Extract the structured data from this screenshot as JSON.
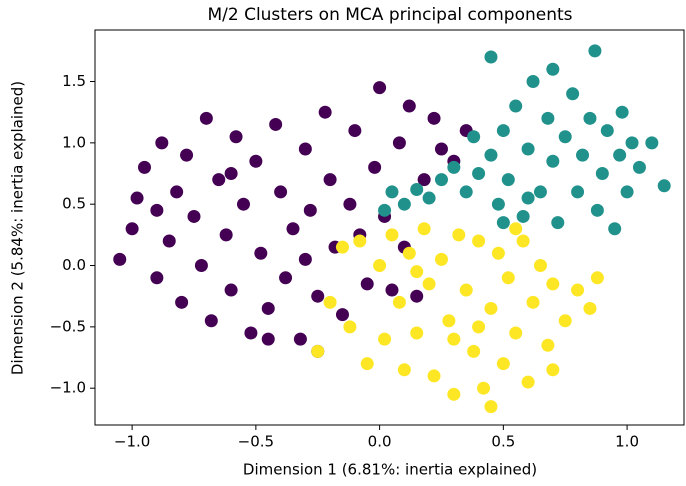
{
  "chart_data": {
    "type": "scatter",
    "title": "M/2 Clusters on MCA principal components",
    "x_label": "Dimension 1 (6.81%: inertia explained)",
    "y_label": "Dimension 2 (5.84%: inertia explained)",
    "xlim": [
      -1.15,
      1.23
    ],
    "ylim": [
      -1.3,
      1.92
    ],
    "xticks": [
      {
        "value": -1.0,
        "label": "−1.0"
      },
      {
        "value": -0.5,
        "label": "−0.5"
      },
      {
        "value": 0.0,
        "label": "0.0"
      },
      {
        "value": 0.5,
        "label": "0.5"
      },
      {
        "value": 1.0,
        "label": "1.0"
      }
    ],
    "yticks": [
      {
        "value": -1.0,
        "label": "−1.0"
      },
      {
        "value": -0.5,
        "label": "−0.5"
      },
      {
        "value": 0.0,
        "label": "0.0"
      },
      {
        "value": 0.5,
        "label": "0.5"
      },
      {
        "value": 1.0,
        "label": "1.0"
      },
      {
        "value": 1.5,
        "label": "1.5"
      }
    ],
    "series": [
      {
        "color": "#440154",
        "x": [
          -1.05,
          -1.0,
          -0.98,
          -0.95,
          -0.9,
          -0.88,
          -0.85,
          -0.82,
          -0.8,
          -0.78,
          -0.75,
          -0.72,
          -0.7,
          -0.68,
          -0.65,
          -0.62,
          -0.6,
          -0.58,
          -0.55,
          -0.52,
          -0.5,
          -0.48,
          -0.45,
          -0.42,
          -0.4,
          -0.38,
          -0.35,
          -0.32,
          -0.3,
          -0.28,
          -0.25,
          -0.22,
          -0.2,
          -0.18,
          -0.15,
          -0.12,
          -0.1,
          -0.08,
          -0.05,
          -0.02,
          0.0,
          0.02,
          0.05,
          0.08,
          0.1,
          0.12,
          0.15,
          0.18,
          0.22,
          0.25,
          0.3,
          0.35,
          -0.9,
          -0.6,
          -0.3,
          -0.45,
          -0.25
        ],
        "y": [
          0.05,
          0.3,
          0.55,
          0.8,
          -0.1,
          1.0,
          0.2,
          0.6,
          -0.3,
          0.9,
          0.4,
          0.0,
          1.2,
          -0.45,
          0.7,
          0.25,
          -0.2,
          1.05,
          0.5,
          -0.55,
          0.85,
          0.1,
          -0.35,
          1.15,
          0.6,
          -0.1,
          0.3,
          -0.6,
          0.95,
          0.45,
          -0.25,
          1.25,
          0.7,
          0.15,
          -0.4,
          0.5,
          1.1,
          0.25,
          -0.15,
          0.8,
          1.45,
          0.4,
          -0.2,
          1.0,
          0.15,
          1.3,
          -0.25,
          0.7,
          1.2,
          0.95,
          0.85,
          1.1,
          0.45,
          0.75,
          0.05,
          -0.6,
          -0.7
        ]
      },
      {
        "color": "#21918c",
        "x": [
          0.02,
          0.05,
          0.1,
          0.15,
          0.2,
          0.25,
          0.3,
          0.35,
          0.4,
          0.45,
          0.48,
          0.5,
          0.52,
          0.55,
          0.58,
          0.6,
          0.62,
          0.65,
          0.68,
          0.7,
          0.72,
          0.75,
          0.78,
          0.8,
          0.82,
          0.85,
          0.87,
          0.88,
          0.9,
          0.92,
          0.95,
          0.97,
          1.0,
          1.02,
          1.05,
          1.1,
          1.15,
          0.45,
          0.5,
          0.38,
          0.7,
          0.6,
          0.98
        ],
        "y": [
          0.45,
          0.6,
          0.5,
          0.62,
          0.55,
          0.7,
          0.8,
          0.6,
          0.75,
          0.9,
          0.5,
          1.1,
          0.7,
          1.3,
          0.4,
          0.95,
          1.5,
          0.6,
          1.2,
          0.85,
          0.35,
          1.05,
          1.4,
          0.6,
          0.9,
          1.2,
          1.75,
          0.45,
          0.75,
          1.1,
          0.3,
          0.9,
          0.6,
          1.0,
          0.8,
          1.0,
          0.65,
          1.7,
          0.35,
          1.05,
          1.6,
          0.55,
          1.25
        ]
      },
      {
        "color": "#fde725",
        "x": [
          -0.25,
          -0.2,
          -0.15,
          -0.12,
          -0.08,
          -0.05,
          0.0,
          0.02,
          0.05,
          0.08,
          0.1,
          0.12,
          0.15,
          0.18,
          0.2,
          0.22,
          0.25,
          0.28,
          0.3,
          0.32,
          0.35,
          0.38,
          0.4,
          0.42,
          0.45,
          0.48,
          0.5,
          0.52,
          0.55,
          0.58,
          0.6,
          0.62,
          0.65,
          0.68,
          0.7,
          0.75,
          0.8,
          0.85,
          0.88,
          0.3,
          0.45,
          0.15,
          0.55,
          0.4,
          0.7
        ],
        "y": [
          -0.7,
          -0.3,
          0.15,
          -0.5,
          0.2,
          -0.8,
          0.0,
          -0.6,
          0.25,
          -0.3,
          -0.85,
          0.1,
          -0.55,
          0.3,
          -0.15,
          -0.9,
          0.05,
          -0.45,
          -1.05,
          0.25,
          -0.2,
          -0.7,
          0.2,
          -1.0,
          -0.35,
          0.1,
          -0.8,
          -0.1,
          -0.55,
          0.2,
          -0.95,
          -0.3,
          0.0,
          -0.65,
          -0.15,
          -0.45,
          -0.2,
          -0.35,
          -0.1,
          -0.6,
          -1.15,
          -0.05,
          0.3,
          -0.5,
          -0.85
        ]
      }
    ]
  }
}
